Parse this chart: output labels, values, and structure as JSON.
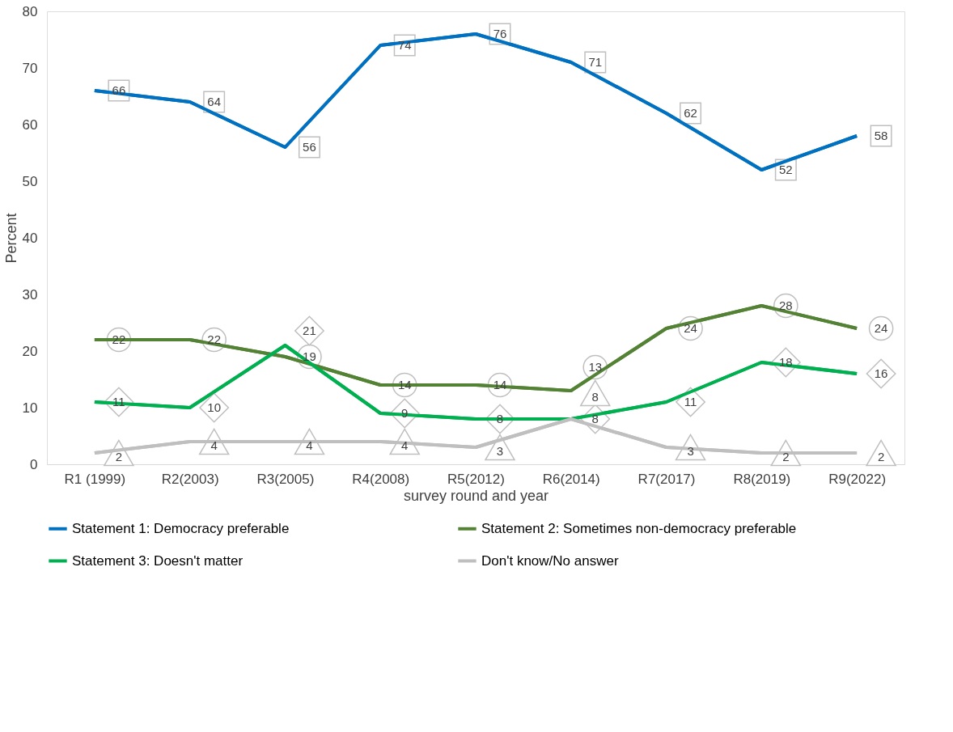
{
  "chart_data": {
    "type": "line",
    "xlabel": "survey round and year",
    "ylabel": "Percent",
    "categories": [
      "R1 (1999)",
      "R2(2003)",
      "R3(2005)",
      "R4(2008)",
      "R5(2012)",
      "R6(2014)",
      "R7(2017)",
      "R8(2019)",
      "R9(2022)"
    ],
    "series": [
      {
        "name": "Statement 1: Democracy preferable",
        "color": "#0070c0",
        "values": [
          66,
          64,
          56,
          74,
          76,
          71,
          62,
          52,
          58
        ]
      },
      {
        "name": "Statement 2: Sometimes non-democracy preferable",
        "color": "#548235",
        "values": [
          22,
          22,
          19,
          14,
          14,
          13,
          24,
          28,
          24
        ]
      },
      {
        "name": "Statement 3: Doesn't matter",
        "color": "#00b050",
        "values": [
          11,
          10,
          21,
          9,
          8,
          8,
          11,
          18,
          16
        ]
      },
      {
        "name": "Don't know/No answer",
        "color": "#bfbfbf",
        "values": [
          2,
          4,
          4,
          4,
          3,
          8,
          3,
          2,
          2
        ]
      }
    ],
    "ylim": [
      0,
      80
    ],
    "yticks": [
      0,
      10,
      20,
      30,
      40,
      50,
      60,
      70,
      80
    ],
    "grid": false,
    "legend": "bottom",
    "marker": "none",
    "line_style": "solid",
    "data_labels": true
  }
}
